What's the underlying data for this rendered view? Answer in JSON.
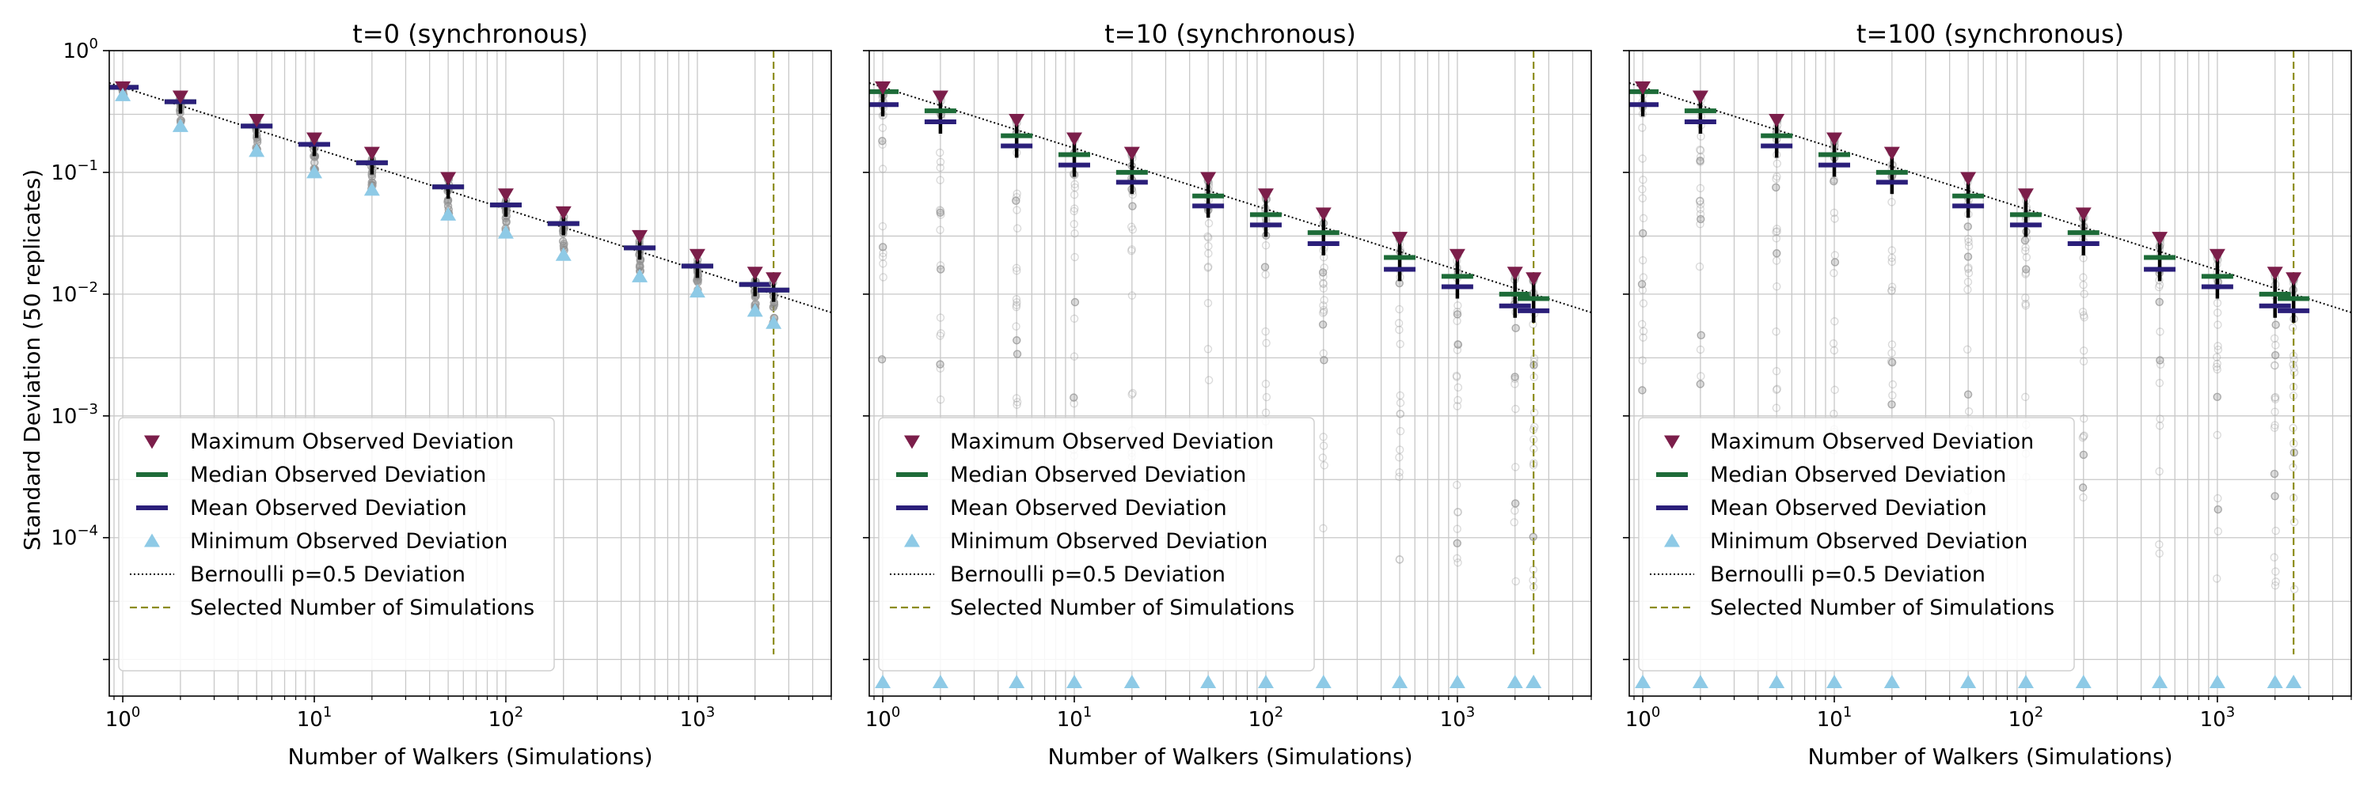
{
  "figure": {
    "ylabel": "Standard Deviation (50 replicates)",
    "xlabel": "Number of Walkers (Simulations)"
  },
  "colors": {
    "max": "#7b1e4a",
    "median": "#1d6b38",
    "mean": "#2b1f7a",
    "min": "#8ecae6",
    "bernoulli": "#000000",
    "selected": "#8c8c1a",
    "scatter": "#999999",
    "grid": "#c8c8c8"
  },
  "legend": [
    {
      "key": "max",
      "label": "Maximum Observed Deviation",
      "marker": "triangle-down"
    },
    {
      "key": "median",
      "label": "Median Observed Deviation",
      "marker": "hline"
    },
    {
      "key": "mean",
      "label": "Mean Observed Deviation",
      "marker": "hline"
    },
    {
      "key": "min",
      "label": "Minimum Observed Deviation",
      "marker": "triangle-up"
    },
    {
      "key": "bernoulli",
      "label": "Bernoulli p=0.5 Deviation",
      "marker": "dotted-line"
    },
    {
      "key": "selected",
      "label": "Selected Number of Simulations",
      "marker": "dashed-line"
    }
  ],
  "chart_data": [
    {
      "type": "scatter",
      "title": "t=0 (synchronous)",
      "x_scale": "log",
      "y_scale": "log",
      "xlim": [
        0.85,
        5000
      ],
      "ylim": [
        5e-06,
        1
      ],
      "x_ticks": [
        {
          "value": 1,
          "base": "10",
          "exp": "0"
        },
        {
          "value": 10,
          "base": "10",
          "exp": "1"
        },
        {
          "value": 100,
          "base": "10",
          "exp": "2"
        },
        {
          "value": 1000,
          "base": "10",
          "exp": "3"
        }
      ],
      "y_ticks": [
        {
          "value": 1,
          "base": "10",
          "exp": "0"
        },
        {
          "value": 0.1,
          "base": "10",
          "exp": "−1"
        },
        {
          "value": 0.01,
          "base": "10",
          "exp": "−2"
        },
        {
          "value": 0.001,
          "base": "10",
          "exp": "−3"
        },
        {
          "value": 0.0001,
          "base": "10",
          "exp": "−4"
        }
      ],
      "grid": true,
      "legend_position": "lower-left",
      "selected_walkers": 2500,
      "bernoulli_p": 0.5,
      "walkers": [
        1,
        2,
        5,
        10,
        20,
        50,
        100,
        200,
        500,
        1000,
        2000,
        2500
      ],
      "series": [
        {
          "name": "Maximum Observed Deviation",
          "key": "max",
          "values": [
            0.5,
            0.42,
            0.27,
            0.19,
            0.145,
            0.09,
            0.066,
            0.047,
            0.03,
            0.021,
            0.015,
            0.0135
          ]
        },
        {
          "name": "Median Observed Deviation",
          "key": "median",
          "values": [
            0.5,
            0.38,
            0.24,
            0.17,
            0.12,
            0.076,
            0.054,
            0.038,
            0.024,
            0.017,
            0.012,
            0.0108
          ]
        },
        {
          "name": "Mean Observed Deviation",
          "key": "mean",
          "values": [
            0.5,
            0.38,
            0.24,
            0.17,
            0.12,
            0.076,
            0.054,
            0.038,
            0.024,
            0.017,
            0.012,
            0.0108
          ]
        },
        {
          "name": "Minimum Observed Deviation",
          "key": "min",
          "values": [
            0.43,
            0.24,
            0.15,
            0.1,
            0.072,
            0.045,
            0.032,
            0.021,
            0.014,
            0.0105,
            0.0073,
            0.0058
          ]
        }
      ]
    },
    {
      "type": "scatter",
      "title": "t=10 (synchronous)",
      "x_scale": "log",
      "y_scale": "log",
      "xlim": [
        0.85,
        5000
      ],
      "ylim": [
        5e-06,
        1
      ],
      "x_ticks": [
        {
          "value": 1,
          "base": "10",
          "exp": "0"
        },
        {
          "value": 10,
          "base": "10",
          "exp": "1"
        },
        {
          "value": 100,
          "base": "10",
          "exp": "2"
        },
        {
          "value": 1000,
          "base": "10",
          "exp": "3"
        }
      ],
      "grid": true,
      "legend_position": "lower-left",
      "selected_walkers": 2500,
      "bernoulli_p": 0.5,
      "walkers": [
        1,
        2,
        5,
        10,
        20,
        50,
        100,
        200,
        500,
        1000,
        2000,
        2500
      ],
      "series": [
        {
          "name": "Maximum Observed Deviation",
          "key": "max",
          "values": [
            0.5,
            0.42,
            0.27,
            0.19,
            0.145,
            0.09,
            0.066,
            0.046,
            0.029,
            0.021,
            0.015,
            0.0135
          ]
        },
        {
          "name": "Median Observed Deviation",
          "key": "median",
          "values": [
            0.46,
            0.32,
            0.2,
            0.14,
            0.1,
            0.064,
            0.045,
            0.032,
            0.02,
            0.014,
            0.01,
            0.0092
          ]
        },
        {
          "name": "Mean Observed Deviation",
          "key": "mean",
          "values": [
            0.36,
            0.26,
            0.165,
            0.115,
            0.083,
            0.053,
            0.037,
            0.026,
            0.016,
            0.0115,
            0.008,
            0.0073
          ]
        },
        {
          "name": "Minimum Observed Deviation",
          "key": "min",
          "values": [
            6.5e-06,
            6.5e-06,
            6.5e-06,
            6.5e-06,
            6.5e-06,
            6.5e-06,
            6.5e-06,
            6.5e-06,
            6.5e-06,
            6.5e-06,
            6.5e-06,
            6.5e-06
          ]
        }
      ]
    },
    {
      "type": "scatter",
      "title": "t=100 (synchronous)",
      "x_scale": "log",
      "y_scale": "log",
      "xlim": [
        0.85,
        5000
      ],
      "ylim": [
        5e-06,
        1
      ],
      "x_ticks": [
        {
          "value": 1,
          "base": "10",
          "exp": "0"
        },
        {
          "value": 10,
          "base": "10",
          "exp": "1"
        },
        {
          "value": 100,
          "base": "10",
          "exp": "2"
        },
        {
          "value": 1000,
          "base": "10",
          "exp": "3"
        }
      ],
      "grid": true,
      "legend_position": "lower-left",
      "selected_walkers": 2500,
      "bernoulli_p": 0.5,
      "walkers": [
        1,
        2,
        5,
        10,
        20,
        50,
        100,
        200,
        500,
        1000,
        2000,
        2500
      ],
      "series": [
        {
          "name": "Maximum Observed Deviation",
          "key": "max",
          "values": [
            0.5,
            0.42,
            0.27,
            0.19,
            0.145,
            0.09,
            0.066,
            0.046,
            0.029,
            0.021,
            0.015,
            0.0135
          ]
        },
        {
          "name": "Median Observed Deviation",
          "key": "median",
          "values": [
            0.46,
            0.32,
            0.2,
            0.14,
            0.1,
            0.064,
            0.045,
            0.032,
            0.02,
            0.014,
            0.01,
            0.0092
          ]
        },
        {
          "name": "Mean Observed Deviation",
          "key": "mean",
          "values": [
            0.36,
            0.26,
            0.165,
            0.115,
            0.083,
            0.053,
            0.037,
            0.026,
            0.016,
            0.0115,
            0.008,
            0.0073
          ]
        },
        {
          "name": "Minimum Observed Deviation",
          "key": "min",
          "values": [
            6.5e-06,
            6.5e-06,
            6.5e-06,
            6.5e-06,
            6.5e-06,
            6.5e-06,
            6.5e-06,
            6.5e-06,
            6.5e-06,
            6.5e-06,
            6.5e-06,
            6.5e-06
          ]
        }
      ]
    }
  ]
}
